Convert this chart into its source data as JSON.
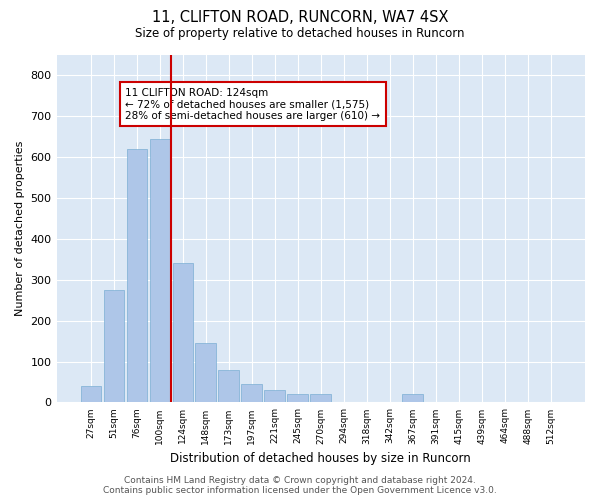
{
  "title_line1": "11, CLIFTON ROAD, RUNCORN, WA7 4SX",
  "title_line2": "Size of property relative to detached houses in Runcorn",
  "xlabel": "Distribution of detached houses by size in Runcorn",
  "ylabel": "Number of detached properties",
  "categories": [
    "27sqm",
    "51sqm",
    "76sqm",
    "100sqm",
    "124sqm",
    "148sqm",
    "173sqm",
    "197sqm",
    "221sqm",
    "245sqm",
    "270sqm",
    "294sqm",
    "318sqm",
    "342sqm",
    "367sqm",
    "391sqm",
    "415sqm",
    "439sqm",
    "464sqm",
    "488sqm",
    "512sqm"
  ],
  "values": [
    40,
    275,
    620,
    645,
    340,
    145,
    80,
    45,
    30,
    20,
    20,
    0,
    0,
    0,
    20,
    0,
    0,
    0,
    0,
    0,
    0
  ],
  "bar_color": "#aec6e8",
  "bar_edge_color": "#7bafd4",
  "highlight_index": 4,
  "highlight_line_color": "#cc0000",
  "annotation_text": "11 CLIFTON ROAD: 124sqm\n← 72% of detached houses are smaller (1,575)\n28% of semi-detached houses are larger (610) →",
  "annotation_box_color": "#ffffff",
  "annotation_box_edge_color": "#cc0000",
  "ylim": [
    0,
    850
  ],
  "yticks": [
    0,
    100,
    200,
    300,
    400,
    500,
    600,
    700,
    800
  ],
  "background_color": "#dce8f5",
  "grid_color": "#ffffff",
  "fig_bg_color": "#ffffff",
  "footer_line1": "Contains HM Land Registry data © Crown copyright and database right 2024.",
  "footer_line2": "Contains public sector information licensed under the Open Government Licence v3.0."
}
